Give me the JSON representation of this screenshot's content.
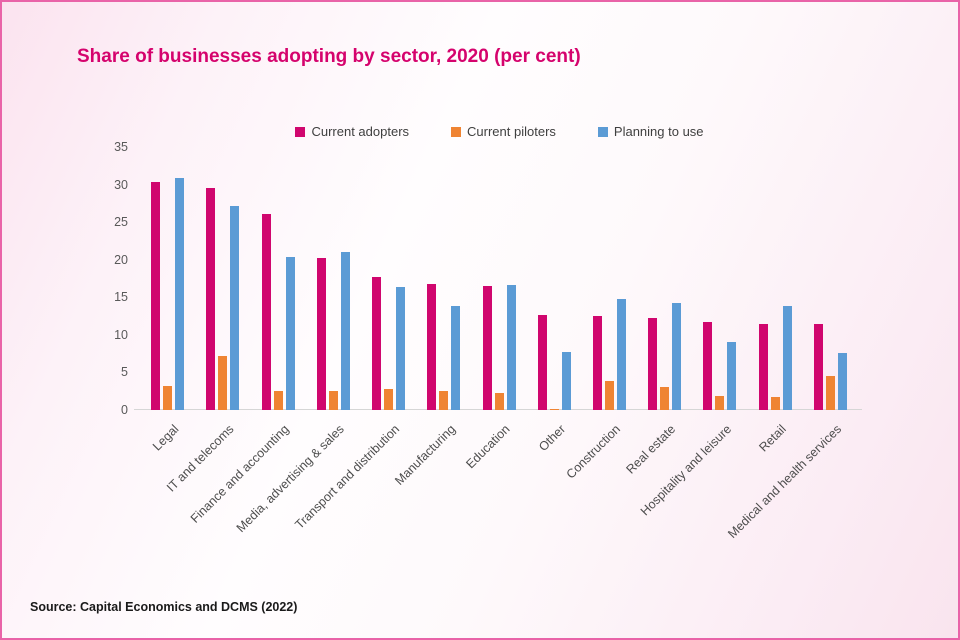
{
  "title": "Share of businesses adopting by sector, 2020 (per cent)",
  "source": "Source: Capital Economics and DCMS (2022)",
  "colors": {
    "title": "#d5036d",
    "adopters": "#d0066e",
    "piloters": "#ef8433",
    "planning": "#5b9bd5",
    "frame_border": "#e963a8"
  },
  "chart_data": {
    "type": "bar",
    "title": "Share of businesses adopting by sector, 2020 (per cent)",
    "xlabel": "",
    "ylabel": "",
    "ylim": [
      0,
      35
    ],
    "yticks": [
      0,
      5,
      10,
      15,
      20,
      25,
      30,
      35
    ],
    "grid": false,
    "legend_position": "top",
    "categories": [
      "Legal",
      "IT and telecoms",
      "Finance and accounting",
      "Media, advertising & sales",
      "Transport and distribution",
      "Manufacturing",
      "Education",
      "Other",
      "Construction",
      "Real estate",
      "Hospitality and leisure",
      "Retail",
      "Medical and health services"
    ],
    "series": [
      {
        "name": "Current adopters",
        "color": "#d0066e",
        "values": [
          30.3,
          29.5,
          26.1,
          20.2,
          17.7,
          16.8,
          16.5,
          12.7,
          12.5,
          12.2,
          11.7,
          11.4,
          11.4
        ]
      },
      {
        "name": "Current piloters",
        "color": "#ef8433",
        "values": [
          3.2,
          7.2,
          2.5,
          2.5,
          2.8,
          2.5,
          2.3,
          0.2,
          3.8,
          3.0,
          1.9,
          1.7,
          4.5
        ]
      },
      {
        "name": "Planning to use",
        "color": "#5b9bd5",
        "values": [
          30.9,
          27.1,
          20.4,
          21.0,
          16.4,
          13.8,
          16.7,
          7.7,
          14.8,
          14.3,
          9.0,
          13.8,
          7.6
        ]
      }
    ]
  }
}
